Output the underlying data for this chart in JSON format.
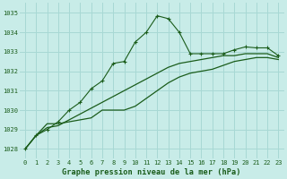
{
  "title": "Graphe pression niveau de la mer (hPa)",
  "background_color": "#c8ece8",
  "grid_color": "#a8d8d4",
  "line_color": "#1a5c1a",
  "xlim": [
    -0.5,
    23.5
  ],
  "ylim": [
    1027.5,
    1035.5
  ],
  "yticks": [
    1028,
    1029,
    1030,
    1031,
    1032,
    1033,
    1034,
    1035
  ],
  "xticks": [
    0,
    1,
    2,
    3,
    4,
    5,
    6,
    7,
    8,
    9,
    10,
    11,
    12,
    13,
    14,
    15,
    16,
    17,
    18,
    19,
    20,
    21,
    22,
    23
  ],
  "series1_x": [
    0,
    1,
    2,
    3,
    4,
    5,
    6,
    7,
    8,
    9,
    10,
    11,
    12,
    13,
    14,
    15,
    16,
    17,
    18,
    19,
    20,
    21,
    22,
    23
  ],
  "series1_y": [
    1028.0,
    1028.7,
    1029.0,
    1029.4,
    1030.0,
    1030.4,
    1031.1,
    1031.5,
    1032.4,
    1032.5,
    1033.5,
    1034.0,
    1034.85,
    1034.7,
    1034.0,
    1032.9,
    1032.9,
    1032.9,
    1032.9,
    1033.1,
    1033.25,
    1033.2,
    1033.2,
    1032.8
  ],
  "series2_x": [
    0,
    1,
    2,
    3,
    4,
    5,
    6,
    7,
    8,
    9,
    10,
    11,
    12,
    13,
    14,
    15,
    16,
    17,
    18,
    19,
    20,
    21,
    22,
    23
  ],
  "series2_y": [
    1028.0,
    1028.7,
    1029.3,
    1029.3,
    1029.4,
    1029.5,
    1029.6,
    1030.0,
    1030.0,
    1030.0,
    1030.2,
    1030.6,
    1031.0,
    1031.4,
    1031.7,
    1031.9,
    1032.0,
    1032.1,
    1032.3,
    1032.5,
    1032.6,
    1032.7,
    1032.7,
    1032.6
  ],
  "series3_x": [
    0,
    1,
    2,
    3,
    4,
    5,
    6,
    7,
    8,
    9,
    10,
    11,
    12,
    13,
    14,
    15,
    16,
    17,
    18,
    19,
    20,
    21,
    22,
    23
  ],
  "series3_y": [
    1028.0,
    1028.7,
    1029.1,
    1029.2,
    1029.5,
    1029.8,
    1030.1,
    1030.4,
    1030.7,
    1031.0,
    1031.3,
    1031.6,
    1031.9,
    1032.2,
    1032.4,
    1032.5,
    1032.6,
    1032.7,
    1032.8,
    1032.8,
    1032.9,
    1032.9,
    1032.9,
    1032.7
  ],
  "tick_fontsize": 5.0,
  "xlabel_fontsize": 6.2
}
